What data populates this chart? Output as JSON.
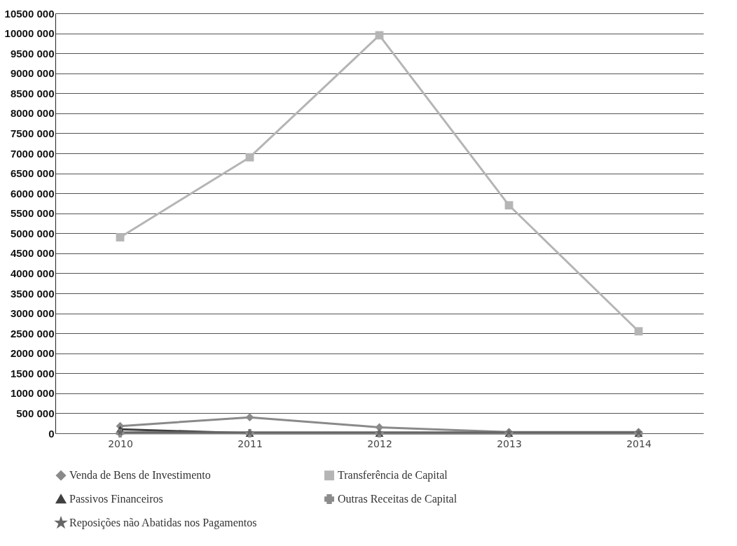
{
  "chart_data": {
    "type": "line",
    "categories": [
      "2010",
      "2011",
      "2012",
      "2013",
      "2014"
    ],
    "series": [
      {
        "name": "Venda de Bens de Investimento",
        "color": "#8a8a8a",
        "marker": "diamond",
        "values": [
          180000,
          400000,
          150000,
          30000,
          30000
        ]
      },
      {
        "name": "Transferência de Capital",
        "color": "#b5b5b5",
        "marker": "square",
        "values": [
          4900000,
          6900000,
          9950000,
          5700000,
          2550000
        ]
      },
      {
        "name": "Passivos Financeiros",
        "color": "#404040",
        "marker": "triangle",
        "values": [
          100000,
          0,
          0,
          0,
          0
        ]
      },
      {
        "name": "Outras Receitas de Capital",
        "color": "#8c8c8c",
        "marker": "cross",
        "values": [
          0,
          0,
          0,
          0,
          0
        ]
      },
      {
        "name": "Reposições não Abatidas nos Pagamentos",
        "color": "#666666",
        "marker": "star",
        "values": [
          20000,
          20000,
          20000,
          20000,
          20000
        ]
      }
    ],
    "ylim": [
      0,
      10500000
    ],
    "yticks": [
      0,
      {
        "value": 500000,
        "label": "500 000"
      },
      {
        "value": 1000000,
        "label": "1000 000"
      },
      {
        "value": 1500000,
        "label": "1500 000"
      },
      {
        "value": 2000000,
        "label": "2000 000"
      },
      {
        "value": 2500000,
        "label": "2500 000"
      },
      {
        "value": 3000000,
        "label": "3000 000"
      },
      {
        "value": 3500000,
        "label": "3500 000"
      },
      {
        "value": 4000000,
        "label": "4000 000"
      },
      {
        "value": 4500000,
        "label": "4500 000"
      },
      {
        "value": 5000000,
        "label": "5000 000"
      },
      {
        "value": 5500000,
        "label": "5500 000"
      },
      {
        "value": 6000000,
        "label": "6000 000"
      },
      {
        "value": 6500000,
        "label": "6500 000"
      },
      {
        "value": 7000000,
        "label": "7000 000"
      },
      {
        "value": 7500000,
        "label": "7500 000"
      },
      {
        "value": 8000000,
        "label": "8000 000"
      },
      {
        "value": 8500000,
        "label": "8500 000"
      },
      {
        "value": 9000000,
        "label": "9000 000"
      },
      {
        "value": 9500000,
        "label": "9500 000"
      },
      {
        "value": 10000000,
        "label": "10000 000"
      },
      {
        "value": 10500000,
        "label": "10500 000"
      }
    ],
    "grid": "y",
    "legend": "bottom"
  }
}
